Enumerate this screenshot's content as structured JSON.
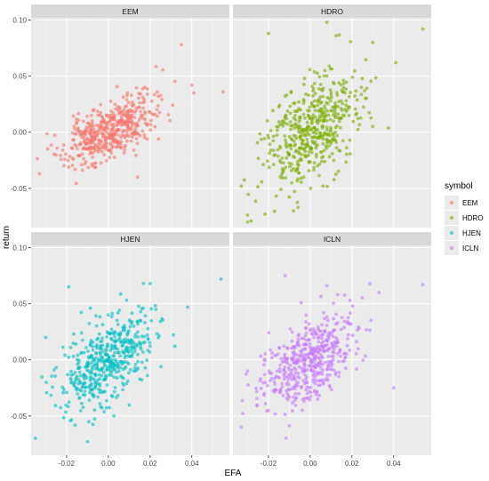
{
  "chart_data": {
    "type": "scatter",
    "facet": "symbol",
    "xlabel": "EFA",
    "ylabel": "return",
    "xlim": [
      -0.037,
      0.058
    ],
    "ylim": [
      -0.085,
      0.102
    ],
    "x_ticks": [
      -0.02,
      0.0,
      0.02,
      0.04
    ],
    "x_tick_labels": [
      "-0.02",
      "0.00",
      "0.02",
      "0.04"
    ],
    "y_ticks": [
      -0.05,
      0.0,
      0.05,
      0.1
    ],
    "y_tick_labels": [
      "-0.05",
      "0.00",
      "0.05",
      "0.10"
    ],
    "grid": true,
    "legend": {
      "title": "symbol",
      "placement": "right",
      "entries": [
        "EEM",
        "HDRO",
        "HJEN",
        "ICLN"
      ]
    },
    "series": [
      {
        "name": "EEM",
        "color": "#F8766D",
        "slope": 0.75,
        "noise": 0.012,
        "n": 500,
        "seed": 11,
        "outliers": [
          [
            0.035,
            0.078
          ],
          [
            0.04,
            0.042
          ],
          [
            0.041,
            0.035
          ],
          [
            0.055,
            0.036
          ],
          [
            0.014,
            -0.04
          ],
          [
            -0.033,
            -0.037
          ]
        ]
      },
      {
        "name": "HDRO",
        "color": "#7CAE00",
        "slope": 1.05,
        "noise": 0.022,
        "n": 500,
        "seed": 23,
        "outliers": [
          [
            0.054,
            0.092
          ],
          [
            0.041,
            0.062
          ],
          [
            0.008,
            0.098
          ],
          [
            -0.02,
            0.088
          ],
          [
            0.03,
            0.08
          ],
          [
            -0.033,
            -0.048
          ],
          [
            -0.03,
            -0.08
          ],
          [
            -0.008,
            -0.07
          ]
        ]
      },
      {
        "name": "HJEN",
        "color": "#00BFC4",
        "slope": 1.05,
        "noise": 0.018,
        "n": 500,
        "seed": 37,
        "outliers": [
          [
            0.054,
            0.072
          ],
          [
            0.038,
            0.047
          ],
          [
            -0.019,
            0.065
          ],
          [
            -0.035,
            -0.07
          ],
          [
            -0.01,
            -0.073
          ],
          [
            -0.03,
            0.02
          ],
          [
            0.02,
            0.068
          ]
        ]
      },
      {
        "name": "ICLN",
        "color": "#C77CFF",
        "slope": 1.0,
        "noise": 0.017,
        "n": 500,
        "seed": 53,
        "outliers": [
          [
            0.054,
            0.067
          ],
          [
            0.008,
            0.066
          ],
          [
            -0.012,
            0.075
          ],
          [
            -0.033,
            -0.06
          ],
          [
            -0.03,
            -0.01
          ],
          [
            0.04,
            -0.025
          ],
          [
            0.033,
            0.06
          ]
        ]
      }
    ]
  }
}
